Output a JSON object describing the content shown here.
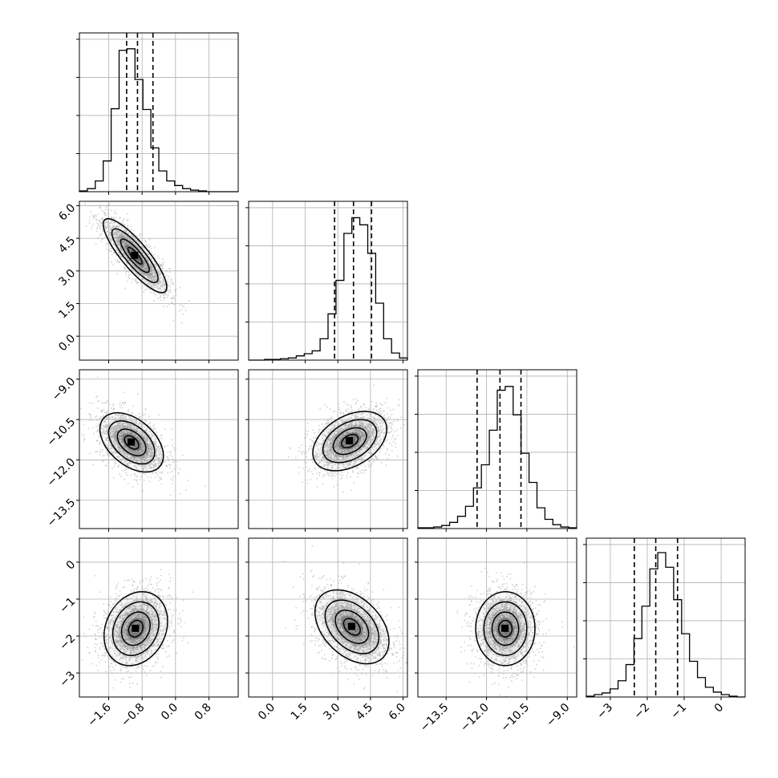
{
  "chart_data": {
    "type": "corner",
    "n_params": 4,
    "grid": true,
    "colors": {
      "line": "#000000",
      "grid": "#b0b0b0",
      "scatter": "#bdbdbd",
      "shade": "#000000"
    },
    "params": [
      {
        "ticks": [
          -1.6,
          -0.8,
          0.0,
          0.8
        ],
        "tick_labels": [
          "−1.6",
          "−0.8",
          "0.0",
          "0.8"
        ],
        "range": [
          -2.3,
          1.5
        ]
      },
      {
        "ticks": [
          0.0,
          1.5,
          3.0,
          4.5,
          6.0
        ],
        "tick_labels": [
          "0.0",
          "1.5",
          "3.0",
          "4.5",
          "6.0"
        ],
        "range": [
          -1.1,
          6.2
        ]
      },
      {
        "ticks": [
          -13.5,
          -12.0,
          -10.5,
          -9.0
        ],
        "tick_labels": [
          "−13.5",
          "−12.0",
          "−10.5",
          "−9.0"
        ],
        "range": [
          -14.55,
          -8.65
        ]
      },
      {
        "ticks": [
          0,
          -1,
          -2,
          -3
        ],
        "tick_labels": [
          "0",
          "−1",
          "−2",
          "−3"
        ],
        "range": [
          -3.65,
          0.65
        ]
      }
    ],
    "histograms": [
      {
        "quantiles": [
          -1.17,
          -0.91,
          -0.54
        ],
        "counts": [
          1,
          4,
          14,
          40,
          108,
          184,
          186,
          146,
          107,
          57,
          27,
          14,
          8,
          4,
          2,
          1,
          0,
          0,
          0,
          0
        ],
        "max": 190
      },
      {
        "quantiles": [
          2.85,
          3.72,
          4.55
        ],
        "counts": [
          0,
          0,
          1,
          1,
          2,
          3,
          6,
          9,
          13,
          30,
          65,
          112,
          178,
          200,
          190,
          150,
          80,
          30,
          10,
          3
        ],
        "max": 205
      },
      {
        "quantiles": [
          -12.35,
          -11.5,
          -10.72
        ],
        "counts": [
          1,
          1,
          2,
          4,
          8,
          16,
          29,
          53,
          83,
          128,
          180,
          185,
          148,
          98,
          60,
          27,
          12,
          5,
          2,
          1
        ],
        "max": 190
      },
      {
        "quantiles": [
          -2.35,
          -1.77,
          -1.18
        ],
        "counts": [
          1,
          3,
          5,
          10,
          20,
          40,
          72,
          112,
          158,
          178,
          160,
          120,
          78,
          44,
          24,
          12,
          6,
          3,
          1,
          0
        ],
        "max": 180
      }
    ],
    "pairs": [
      {
        "row": 1,
        "col": 0,
        "center": [
          -0.97,
          3.7
        ],
        "sd": [
          0.38,
          0.85
        ],
        "corr": -0.85
      },
      {
        "row": 2,
        "col": 0,
        "center": [
          -1.05,
          -11.35
        ],
        "sd": [
          0.38,
          0.55
        ],
        "corr": -0.45
      },
      {
        "row": 2,
        "col": 1,
        "center": [
          3.55,
          -11.3
        ],
        "sd": [
          0.85,
          0.55
        ],
        "corr": 0.4
      },
      {
        "row": 3,
        "col": 0,
        "center": [
          -0.95,
          -1.8
        ],
        "sd": [
          0.38,
          0.5
        ],
        "corr": 0.2
      },
      {
        "row": 3,
        "col": 1,
        "center": [
          3.65,
          -1.75
        ],
        "sd": [
          0.85,
          0.5
        ],
        "corr": -0.4
      },
      {
        "row": 3,
        "col": 2,
        "center": [
          -11.3,
          -1.8
        ],
        "sd": [
          0.55,
          0.5
        ],
        "corr": 0.0
      }
    ]
  }
}
